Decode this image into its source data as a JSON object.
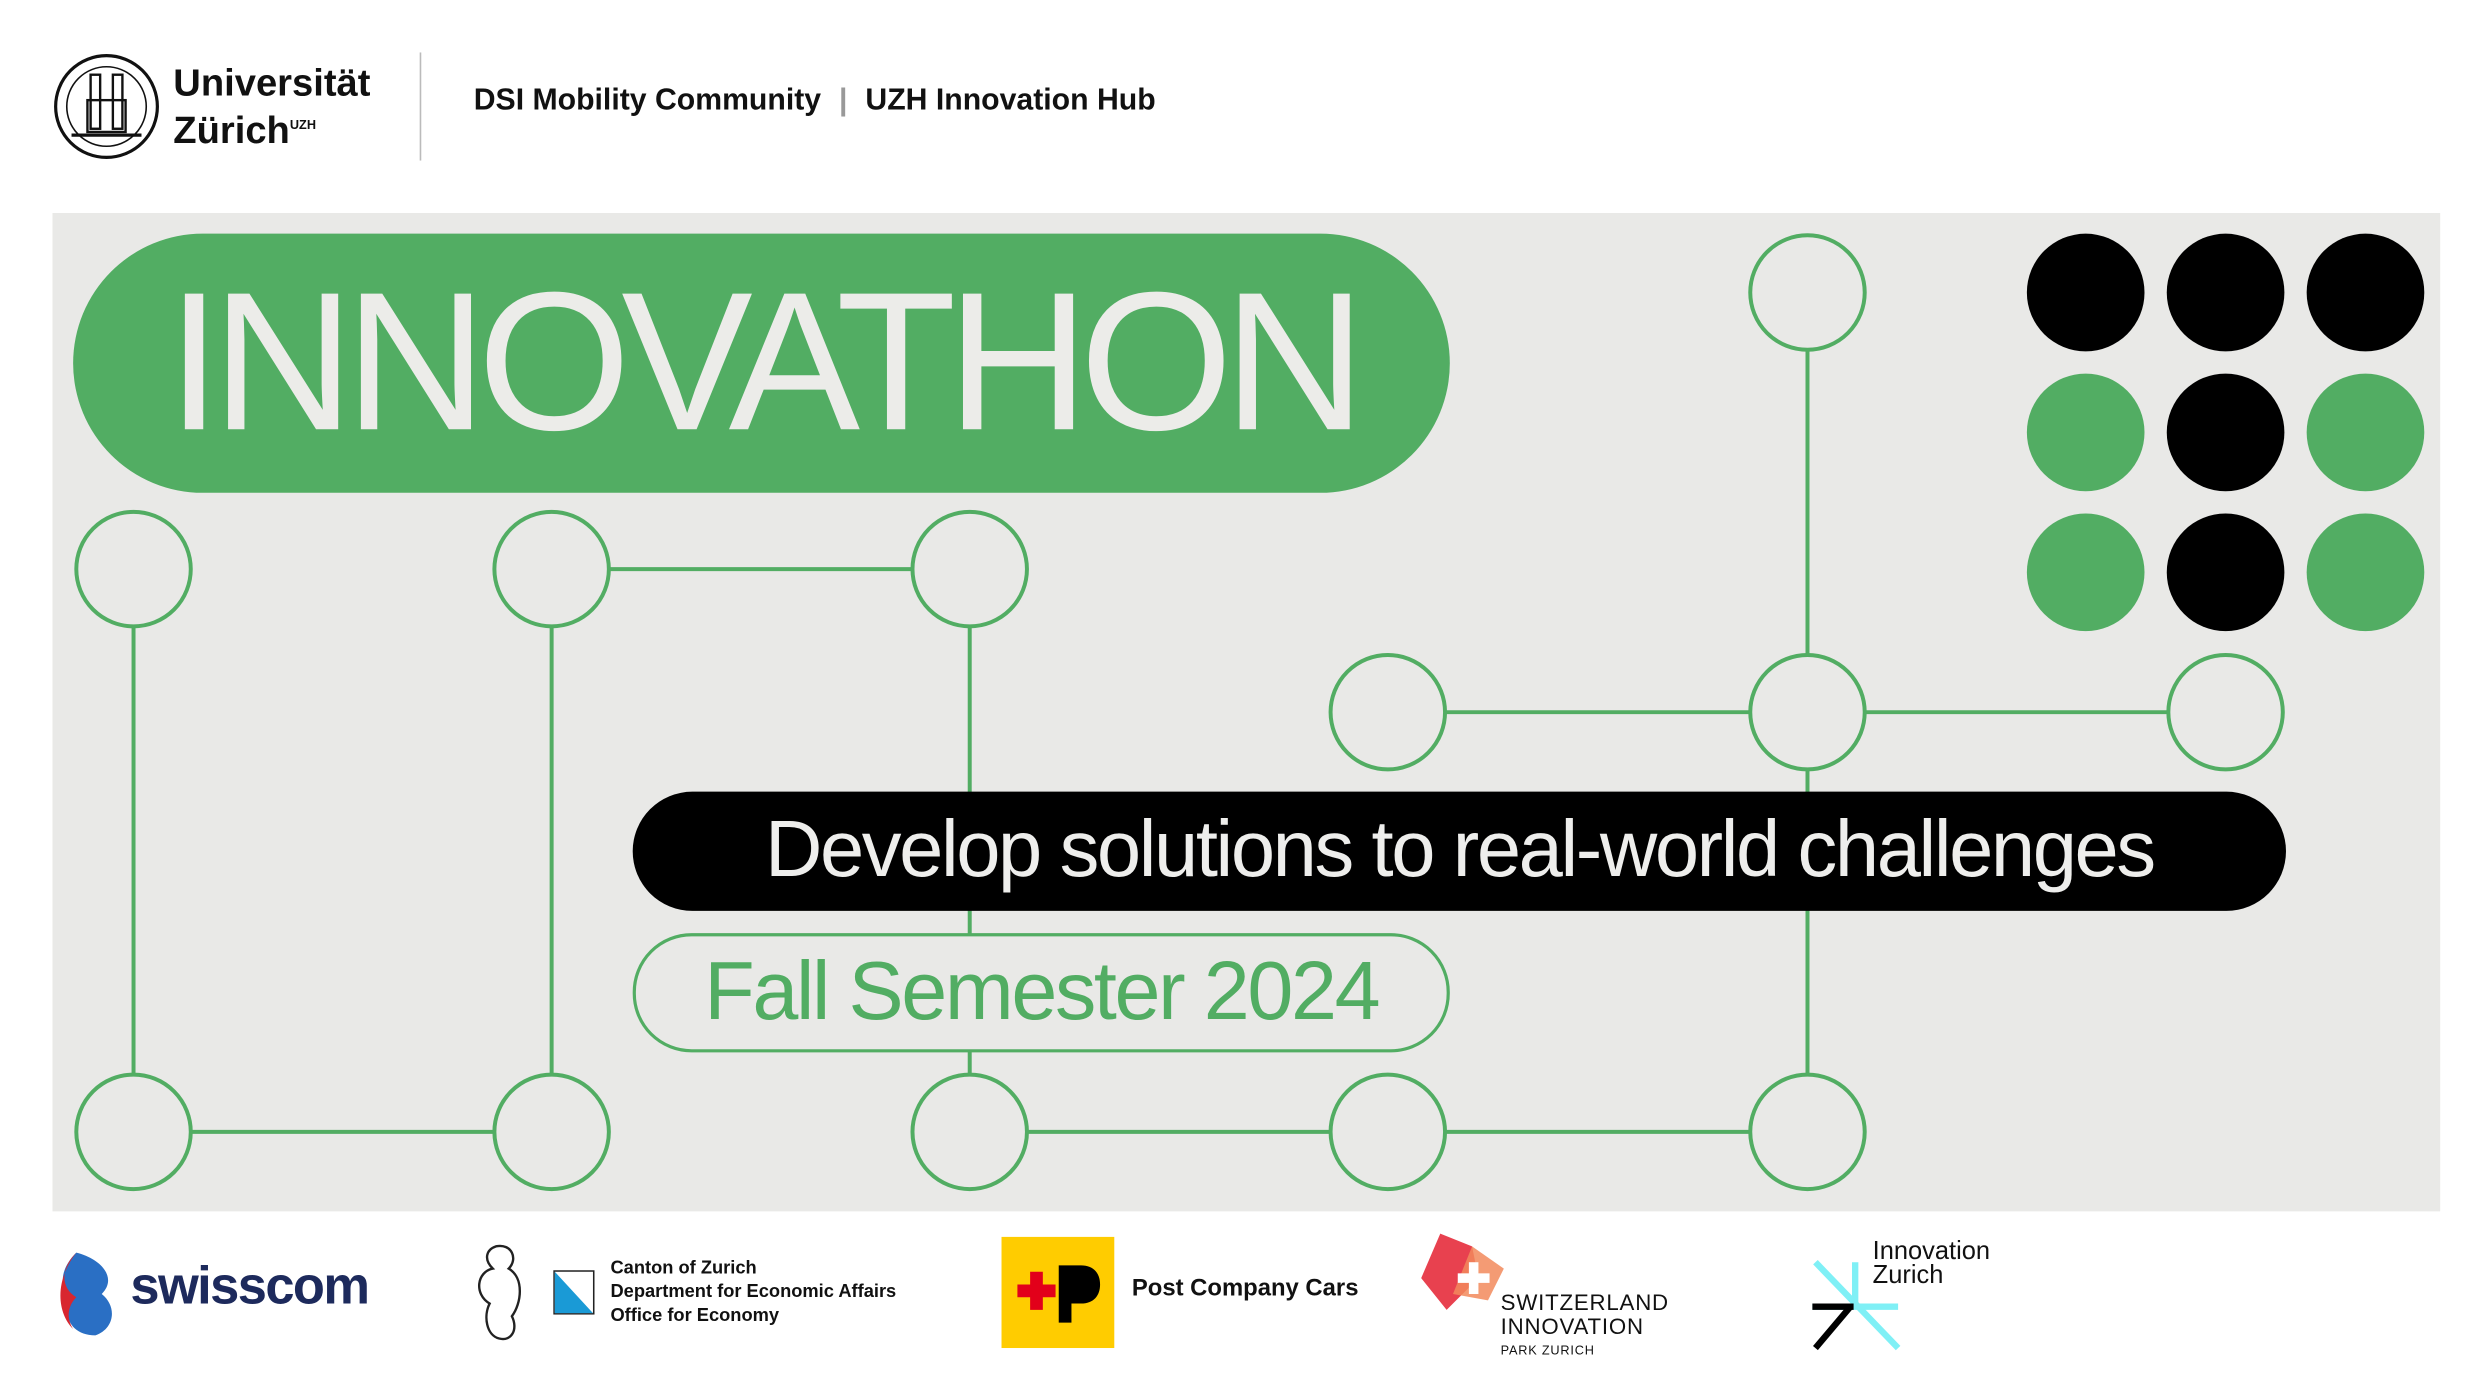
{
  "header": {
    "university_line1": "Universität",
    "university_line2": "Zürich",
    "university_sup": "UZH",
    "community": "DSI Mobility Community",
    "separator": "|",
    "hub": "UZH Innovation Hub"
  },
  "banner": {
    "title": "INNOVATHON",
    "tagline": "Develop solutions to real-world challenges",
    "semester": "Fall Semester 2024"
  },
  "colors": {
    "green": "#52ad63",
    "black": "#000000",
    "panel": "#e9e9e7"
  },
  "dot_grid": [
    [
      "black",
      "black",
      "black"
    ],
    [
      "green",
      "black",
      "green"
    ],
    [
      "green",
      "black",
      "green"
    ]
  ],
  "partners": {
    "swisscom": "swisscom",
    "canton_line1": "Canton of Zurich",
    "canton_line2": "Department for Economic Affairs",
    "canton_line3": "Office for Economy",
    "post": "Post Company Cars",
    "sip_line1": "SWITZERLAND",
    "sip_line2": "INNOVATION",
    "sip_line3": "PARK ZURICH",
    "iz_line1": "Innovation",
    "iz_line2": "Zurich"
  }
}
